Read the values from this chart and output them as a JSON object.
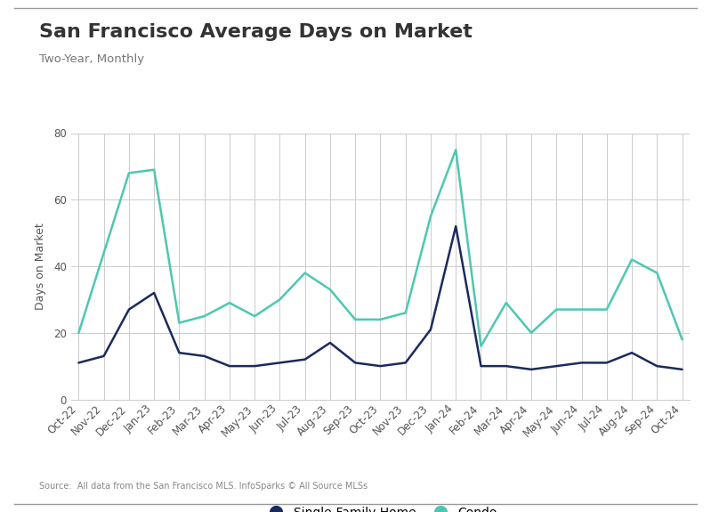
{
  "title": "San Francisco Average Days on Market",
  "subtitle": "Two-Year, Monthly",
  "ylabel": "Days on Market",
  "source": "Source:  All data from the San Francisco MLS. InfoSparks © All Source MLSs",
  "labels": [
    "Oct-22",
    "Nov-22",
    "Dec-22",
    "Jan-23",
    "Feb-23",
    "Mar-23",
    "Apr-23",
    "May-23",
    "Jun-23",
    "Jul-23",
    "Aug-23",
    "Sep-23",
    "Oct-23",
    "Nov-23",
    "Dec-23",
    "Jan-24",
    "Feb-24",
    "Mar-24",
    "Apr-24",
    "May-24",
    "Jun-24",
    "Jul-24",
    "Aug-24",
    "Sep-24",
    "Oct-24"
  ],
  "single_family": [
    11,
    13,
    27,
    32,
    14,
    13,
    10,
    10,
    11,
    12,
    17,
    11,
    10,
    11,
    21,
    52,
    10,
    10,
    9,
    10,
    11,
    11,
    14,
    10,
    9
  ],
  "condo": [
    20,
    44,
    68,
    69,
    23,
    25,
    29,
    25,
    30,
    38,
    33,
    24,
    24,
    26,
    55,
    75,
    16,
    29,
    20,
    27,
    27,
    27,
    42,
    38,
    18
  ],
  "single_family_color": "#1b2a5e",
  "condo_color": "#4dc8b0",
  "background_color": "#ffffff",
  "grid_color": "#cccccc",
  "border_color": "#aaaaaa",
  "ylim": [
    0,
    80
  ],
  "yticks": [
    0,
    20,
    40,
    60,
    80
  ],
  "title_fontsize": 16,
  "subtitle_fontsize": 9.5,
  "axis_label_fontsize": 9,
  "tick_fontsize": 8.5,
  "legend_fontsize": 10,
  "source_fontsize": 7,
  "line_width": 1.8
}
